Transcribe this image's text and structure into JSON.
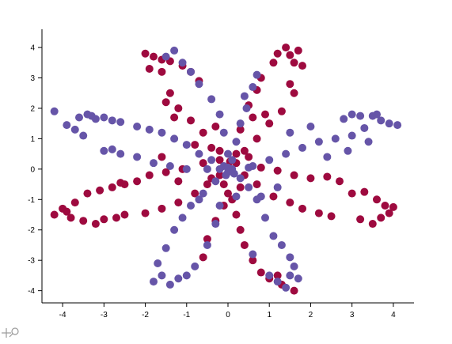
{
  "chart_data": {
    "type": "scatter",
    "title": "",
    "xlabel": "",
    "ylabel": "",
    "xlim": [
      -4.5,
      4.5
    ],
    "ylim": [
      -4.4,
      4.6
    ],
    "x_ticks": [
      -4,
      -3,
      -2,
      -1,
      0,
      1,
      2,
      3,
      4
    ],
    "y_ticks": [
      4,
      3,
      2,
      1,
      0,
      -1,
      -2,
      -3,
      -4
    ],
    "grid": false,
    "legend": "none",
    "series": [
      {
        "color": "#9e0a3f",
        "points": [
          [
            -2.0,
            3.8
          ],
          [
            -1.8,
            3.7
          ],
          [
            -1.6,
            3.6
          ],
          [
            -1.4,
            3.55
          ],
          [
            -1.1,
            3.4
          ],
          [
            -0.9,
            3.2
          ],
          [
            -0.7,
            2.9
          ],
          [
            -1.6,
            3.2
          ],
          [
            -1.4,
            2.5
          ],
          [
            -1.2,
            2.0
          ],
          [
            -0.9,
            1.6
          ],
          [
            -0.6,
            1.2
          ],
          [
            -0.4,
            0.7
          ],
          [
            -0.2,
            0.3
          ],
          [
            -1.9,
            3.3
          ],
          [
            -1.5,
            2.2
          ],
          [
            -1.3,
            1.7
          ],
          [
            1.4,
            4.0
          ],
          [
            1.2,
            3.8
          ],
          [
            1.5,
            3.75
          ],
          [
            1.6,
            3.5
          ],
          [
            1.8,
            3.4
          ],
          [
            1.5,
            2.8
          ],
          [
            1.6,
            2.5
          ],
          [
            1.3,
            1.9
          ],
          [
            1.0,
            1.5
          ],
          [
            0.7,
            1.0
          ],
          [
            0.4,
            0.6
          ],
          [
            0.2,
            0.2
          ],
          [
            0.8,
            3.0
          ],
          [
            0.7,
            2.6
          ],
          [
            0.5,
            2.1
          ],
          [
            0.3,
            1.3
          ],
          [
            1.1,
            3.5
          ],
          [
            1.7,
            3.9
          ],
          [
            -4.2,
            -1.5
          ],
          [
            -3.9,
            -1.4
          ],
          [
            -3.8,
            -1.6
          ],
          [
            -3.5,
            -1.7
          ],
          [
            -3.0,
            -1.65
          ],
          [
            -2.7,
            -1.6
          ],
          [
            -2.5,
            -1.5
          ],
          [
            -2.0,
            -1.45
          ],
          [
            -1.6,
            -1.3
          ],
          [
            -1.2,
            -1.1
          ],
          [
            -0.8,
            -0.8
          ],
          [
            -0.5,
            -0.5
          ],
          [
            -0.2,
            -0.2
          ],
          [
            -4.0,
            -1.3
          ],
          [
            -3.7,
            -1.1
          ],
          [
            -3.4,
            -0.8
          ],
          [
            -3.1,
            -0.7
          ],
          [
            -2.8,
            -0.6
          ],
          [
            -2.5,
            -0.5
          ],
          [
            -2.2,
            -0.4
          ],
          [
            -1.9,
            -0.2
          ],
          [
            -1.5,
            -0.1
          ],
          [
            -1.1,
            0.0
          ],
          [
            -3.2,
            -1.8
          ],
          [
            -2.6,
            -0.45
          ],
          [
            3.0,
            -0.8
          ],
          [
            3.3,
            -0.75
          ],
          [
            3.6,
            -1.0
          ],
          [
            3.8,
            -1.2
          ],
          [
            3.9,
            -1.45
          ],
          [
            3.7,
            -1.6
          ],
          [
            3.5,
            -1.8
          ],
          [
            3.2,
            -1.65
          ],
          [
            2.5,
            -1.55
          ],
          [
            2.2,
            -1.45
          ],
          [
            1.8,
            -1.3
          ],
          [
            1.5,
            -1.1
          ],
          [
            1.1,
            -0.9
          ],
          [
            0.7,
            -0.5
          ],
          [
            0.4,
            -0.2
          ],
          [
            2.0,
            -0.3
          ],
          [
            2.4,
            -0.25
          ],
          [
            2.7,
            -0.4
          ],
          [
            1.6,
            -0.2
          ],
          [
            1.2,
            -0.05
          ],
          [
            0.8,
            0.05
          ],
          [
            4.0,
            -1.25
          ],
          [
            0.3,
            -2.0
          ],
          [
            0.4,
            -2.5
          ],
          [
            0.6,
            -3.0
          ],
          [
            0.8,
            -3.4
          ],
          [
            1.0,
            -3.6
          ],
          [
            1.3,
            -3.8
          ],
          [
            1.6,
            -4.0
          ],
          [
            1.2,
            -3.5
          ],
          [
            0.2,
            -1.5
          ],
          [
            0.1,
            -1.0
          ],
          [
            -0.6,
            -2.9
          ],
          [
            -0.5,
            -2.3
          ],
          [
            -0.3,
            -1.7
          ],
          [
            -0.1,
            -1.2
          ],
          [
            -0.2,
            0.6
          ],
          [
            0.2,
            0.5
          ],
          [
            0.3,
            -0.6
          ],
          [
            -0.4,
            -0.3
          ],
          [
            0.05,
            0.25
          ],
          [
            -0.1,
            -0.5
          ],
          [
            0.6,
            1.7
          ],
          [
            0.9,
            1.8
          ],
          [
            -0.8,
            0.8
          ],
          [
            -0.3,
            1.4
          ],
          [
            0.5,
            0.4
          ],
          [
            -0.6,
            0.2
          ],
          [
            -1.2,
            -0.4
          ],
          [
            -1.6,
            0.4
          ],
          [
            0.0,
            -0.8
          ]
        ]
      },
      {
        "color": "#6655a8",
        "points": [
          [
            -4.2,
            1.9
          ],
          [
            -3.9,
            1.45
          ],
          [
            -3.7,
            1.3
          ],
          [
            -3.5,
            1.1
          ],
          [
            -3.2,
            1.65
          ],
          [
            -3.0,
            1.7
          ],
          [
            -2.8,
            1.6
          ],
          [
            -2.6,
            1.55
          ],
          [
            -2.2,
            1.4
          ],
          [
            -1.9,
            1.3
          ],
          [
            -1.6,
            1.2
          ],
          [
            -1.3,
            1.0
          ],
          [
            -1.0,
            0.8
          ],
          [
            -0.7,
            0.5
          ],
          [
            -0.4,
            0.3
          ],
          [
            -0.1,
            0.1
          ],
          [
            -3.4,
            1.8
          ],
          [
            -3.6,
            1.7
          ],
          [
            -3.0,
            0.6
          ],
          [
            -2.6,
            0.5
          ],
          [
            -2.2,
            0.4
          ],
          [
            -1.8,
            0.2
          ],
          [
            -1.4,
            0.1
          ],
          [
            -1.0,
            0.0
          ],
          [
            -2.8,
            0.65
          ],
          [
            -3.3,
            1.75
          ],
          [
            3.0,
            1.8
          ],
          [
            3.2,
            1.75
          ],
          [
            3.5,
            1.75
          ],
          [
            3.7,
            1.6
          ],
          [
            3.9,
            1.5
          ],
          [
            4.1,
            1.45
          ],
          [
            3.3,
            1.35
          ],
          [
            3.0,
            1.1
          ],
          [
            2.6,
            1.0
          ],
          [
            2.2,
            0.9
          ],
          [
            1.8,
            0.7
          ],
          [
            1.4,
            0.5
          ],
          [
            1.0,
            0.3
          ],
          [
            0.6,
            0.1
          ],
          [
            2.0,
            1.4
          ],
          [
            1.5,
            1.2
          ],
          [
            3.4,
            0.9
          ],
          [
            2.9,
            0.6
          ],
          [
            2.4,
            0.4
          ],
          [
            3.6,
            1.8
          ],
          [
            2.8,
            1.65
          ],
          [
            -1.3,
            3.9
          ],
          [
            -1.5,
            3.7
          ],
          [
            -1.1,
            3.5
          ],
          [
            -0.9,
            3.2
          ],
          [
            -0.7,
            2.8
          ],
          [
            -0.4,
            2.3
          ],
          [
            -0.2,
            1.8
          ],
          [
            -0.1,
            1.2
          ],
          [
            0.0,
            0.5
          ],
          [
            0.4,
            2.4
          ],
          [
            0.6,
            2.7
          ],
          [
            0.7,
            3.1
          ],
          [
            0.45,
            2.0
          ],
          [
            0.3,
            1.5
          ],
          [
            0.2,
            0.9
          ],
          [
            0.1,
            0.3
          ],
          [
            -1.7,
            -3.1
          ],
          [
            -1.6,
            -3.5
          ],
          [
            -1.4,
            -3.8
          ],
          [
            -1.2,
            -3.6
          ],
          [
            -1.0,
            -3.5
          ],
          [
            -0.8,
            -3.2
          ],
          [
            -0.5,
            -2.5
          ],
          [
            -0.3,
            -1.8
          ],
          [
            -0.2,
            -1.2
          ],
          [
            -1.5,
            -2.6
          ],
          [
            -1.3,
            -2.0
          ],
          [
            -1.1,
            -1.6
          ],
          [
            -0.9,
            -1.2
          ],
          [
            -0.6,
            -0.8
          ],
          [
            -0.3,
            -0.4
          ],
          [
            -1.8,
            -3.7
          ],
          [
            1.0,
            -3.5
          ],
          [
            1.2,
            -3.7
          ],
          [
            1.5,
            -3.5
          ],
          [
            1.6,
            -3.2
          ],
          [
            1.5,
            -2.9
          ],
          [
            1.3,
            -2.5
          ],
          [
            1.1,
            -2.2
          ],
          [
            0.9,
            -1.6
          ],
          [
            0.7,
            -1.0
          ],
          [
            0.5,
            -0.6
          ],
          [
            0.3,
            -0.3
          ],
          [
            1.4,
            -3.9
          ],
          [
            1.7,
            -3.6
          ],
          [
            0.2,
            -0.9
          ],
          [
            0.6,
            -2.8
          ],
          [
            -0.7,
            -1.0
          ],
          [
            -0.5,
            0.0
          ],
          [
            0.0,
            -0.1
          ],
          [
            0.1,
            0.0
          ],
          [
            -0.2,
            0.0
          ],
          [
            0.0,
            0.05
          ],
          [
            -0.05,
            -0.2
          ],
          [
            0.15,
            -0.15
          ],
          [
            0.8,
            -0.9
          ],
          [
            1.2,
            -0.6
          ],
          [
            0.5,
            0.05
          ]
        ]
      }
    ]
  },
  "toolbar": {
    "icon": "pan-zoom-icon"
  }
}
